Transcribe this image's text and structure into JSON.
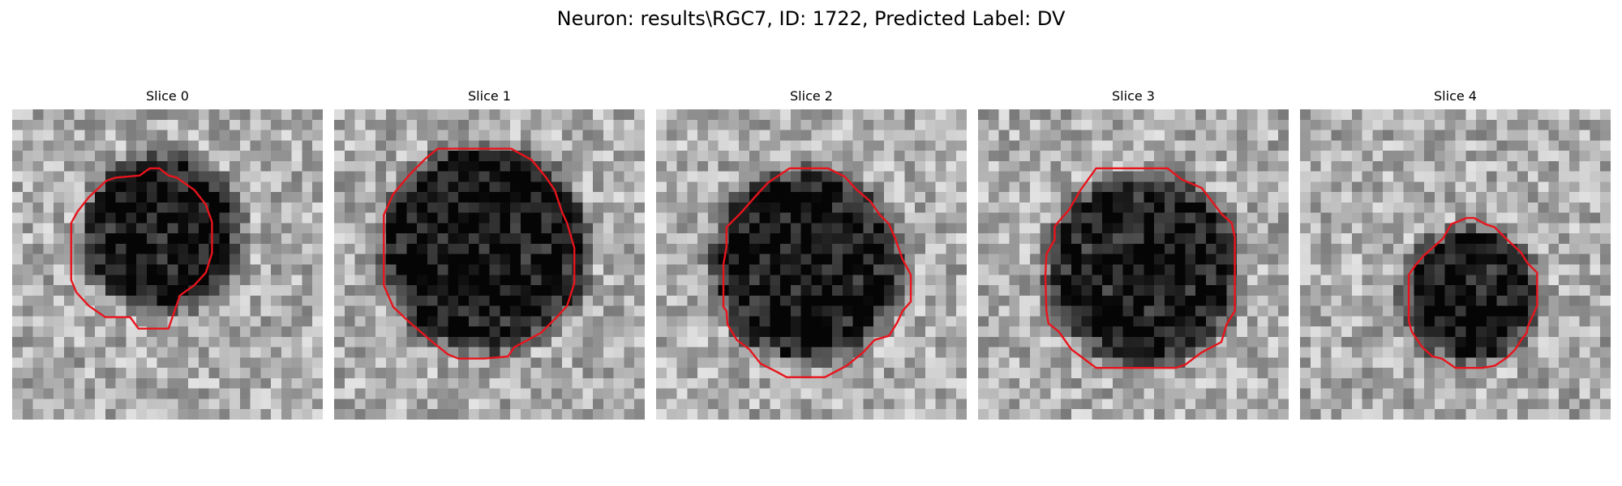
{
  "figure": {
    "title": "Neuron: results\\RGC7, ID: 1722, Predicted Label: DV"
  },
  "image": {
    "colormap": "grayscale",
    "contour_color": "#e8141c",
    "grid": 30
  },
  "slices": [
    {
      "label": "Slice 0",
      "cell": {
        "cx": 14.5,
        "cy": 12.0,
        "r": 7.5,
        "darkness": 0.62
      },
      "contour": [
        [
          13.3,
          5.7
        ],
        [
          14.2,
          5.7
        ],
        [
          15.1,
          6.4
        ],
        [
          15.9,
          6.6
        ],
        [
          17.6,
          7.8
        ],
        [
          18.7,
          9.2
        ],
        [
          19.3,
          10.9
        ],
        [
          19.3,
          13.9
        ],
        [
          18.7,
          15.8
        ],
        [
          17.6,
          17.0
        ],
        [
          16.2,
          18.0
        ],
        [
          15.1,
          21.2
        ],
        [
          12.2,
          21.2
        ],
        [
          11.4,
          20.1
        ],
        [
          9.0,
          20.1
        ],
        [
          7.4,
          19.0
        ],
        [
          6.2,
          17.7
        ],
        [
          5.7,
          16.5
        ],
        [
          5.7,
          11.0
        ],
        [
          6.3,
          9.9
        ],
        [
          7.4,
          8.5
        ],
        [
          9.1,
          6.9
        ],
        [
          10.0,
          6.6
        ],
        [
          12.3,
          6.4
        ]
      ]
    },
    {
      "label": "Slice 1",
      "cell": {
        "cx": 14.5,
        "cy": 13.5,
        "r": 10.0,
        "darkness": 0.6
      },
      "contour": [
        [
          10.0,
          3.8
        ],
        [
          17.1,
          3.8
        ],
        [
          19.1,
          4.9
        ],
        [
          20.4,
          6.5
        ],
        [
          21.3,
          7.8
        ],
        [
          22.0,
          9.9
        ],
        [
          22.5,
          11.0
        ],
        [
          23.2,
          13.4
        ],
        [
          23.2,
          16.8
        ],
        [
          22.5,
          19.0
        ],
        [
          21.6,
          20.0
        ],
        [
          20.0,
          21.6
        ],
        [
          17.4,
          23.0
        ],
        [
          16.8,
          23.9
        ],
        [
          14.5,
          24.1
        ],
        [
          12.0,
          24.1
        ],
        [
          11.0,
          23.7
        ],
        [
          9.5,
          22.5
        ],
        [
          7.3,
          20.6
        ],
        [
          5.7,
          19.1
        ],
        [
          4.8,
          17.0
        ],
        [
          4.8,
          10.2
        ],
        [
          5.7,
          8.2
        ],
        [
          7.3,
          6.3
        ],
        [
          8.9,
          4.7
        ]
      ]
    },
    {
      "label": "Slice 2",
      "cell": {
        "cx": 14.5,
        "cy": 15.0,
        "r": 9.2,
        "darkness": 0.6
      },
      "contour": [
        [
          12.9,
          5.7
        ],
        [
          16.6,
          5.7
        ],
        [
          18.2,
          6.5
        ],
        [
          19.4,
          7.8
        ],
        [
          20.7,
          8.9
        ],
        [
          21.6,
          10.2
        ],
        [
          22.5,
          11.1
        ],
        [
          23.1,
          12.5
        ],
        [
          23.8,
          14.5
        ],
        [
          24.6,
          16.0
        ],
        [
          24.6,
          18.6
        ],
        [
          23.8,
          19.5
        ],
        [
          23.3,
          20.6
        ],
        [
          22.5,
          21.9
        ],
        [
          21.1,
          22.3
        ],
        [
          20.0,
          23.5
        ],
        [
          18.4,
          24.8
        ],
        [
          16.3,
          25.9
        ],
        [
          12.6,
          25.9
        ],
        [
          11.7,
          25.4
        ],
        [
          10.1,
          24.6
        ],
        [
          9.0,
          23.2
        ],
        [
          7.8,
          22.3
        ],
        [
          6.9,
          20.8
        ],
        [
          6.8,
          19.5
        ],
        [
          6.5,
          19.1
        ],
        [
          6.5,
          15.0
        ],
        [
          6.8,
          13.3
        ],
        [
          6.8,
          11.4
        ],
        [
          8.2,
          10.0
        ],
        [
          9.7,
          8.3
        ],
        [
          10.8,
          7.1
        ]
      ]
    },
    {
      "label": "Slice 3",
      "cell": {
        "cx": 16.0,
        "cy": 15.5,
        "r": 9.2,
        "darkness": 0.58
      },
      "contour": [
        [
          11.4,
          5.7
        ],
        [
          18.3,
          5.7
        ],
        [
          19.7,
          6.8
        ],
        [
          21.6,
          7.6
        ],
        [
          23.5,
          10.1
        ],
        [
          24.5,
          11.0
        ],
        [
          24.8,
          12.4
        ],
        [
          24.8,
          19.5
        ],
        [
          24.0,
          20.8
        ],
        [
          23.5,
          22.5
        ],
        [
          21.6,
          23.5
        ],
        [
          20.0,
          24.7
        ],
        [
          19.1,
          25.0
        ],
        [
          18.3,
          25.0
        ],
        [
          11.4,
          25.0
        ],
        [
          10.6,
          24.4
        ],
        [
          9.0,
          23.2
        ],
        [
          7.8,
          21.5
        ],
        [
          6.8,
          20.7
        ],
        [
          6.6,
          19.5
        ],
        [
          6.5,
          16.1
        ],
        [
          6.6,
          14.0
        ],
        [
          7.4,
          12.6
        ],
        [
          7.4,
          11.3
        ],
        [
          8.8,
          9.7
        ],
        [
          9.9,
          7.8
        ]
      ]
    },
    {
      "label": "Slice 4",
      "cell": {
        "cx": 16.5,
        "cy": 18.0,
        "r": 6.5,
        "darkness": 0.6
      },
      "contour": [
        [
          16.1,
          10.5
        ],
        [
          16.8,
          10.5
        ],
        [
          17.9,
          11.1
        ],
        [
          18.8,
          11.4
        ],
        [
          20.0,
          12.6
        ],
        [
          21.3,
          13.8
        ],
        [
          22.0,
          14.9
        ],
        [
          22.9,
          15.8
        ],
        [
          22.9,
          19.0
        ],
        [
          22.0,
          21.0
        ],
        [
          21.9,
          21.6
        ],
        [
          21.3,
          22.4
        ],
        [
          20.8,
          23.2
        ],
        [
          20.0,
          24.0
        ],
        [
          18.8,
          24.8
        ],
        [
          17.6,
          25.0
        ],
        [
          15.0,
          25.0
        ],
        [
          13.7,
          24.1
        ],
        [
          12.8,
          23.9
        ],
        [
          11.8,
          23.0
        ],
        [
          10.8,
          21.5
        ],
        [
          10.5,
          20.5
        ],
        [
          10.5,
          16.0
        ],
        [
          11.2,
          15.0
        ],
        [
          12.0,
          14.1
        ],
        [
          13.8,
          12.5
        ],
        [
          14.6,
          11.1
        ]
      ]
    }
  ]
}
